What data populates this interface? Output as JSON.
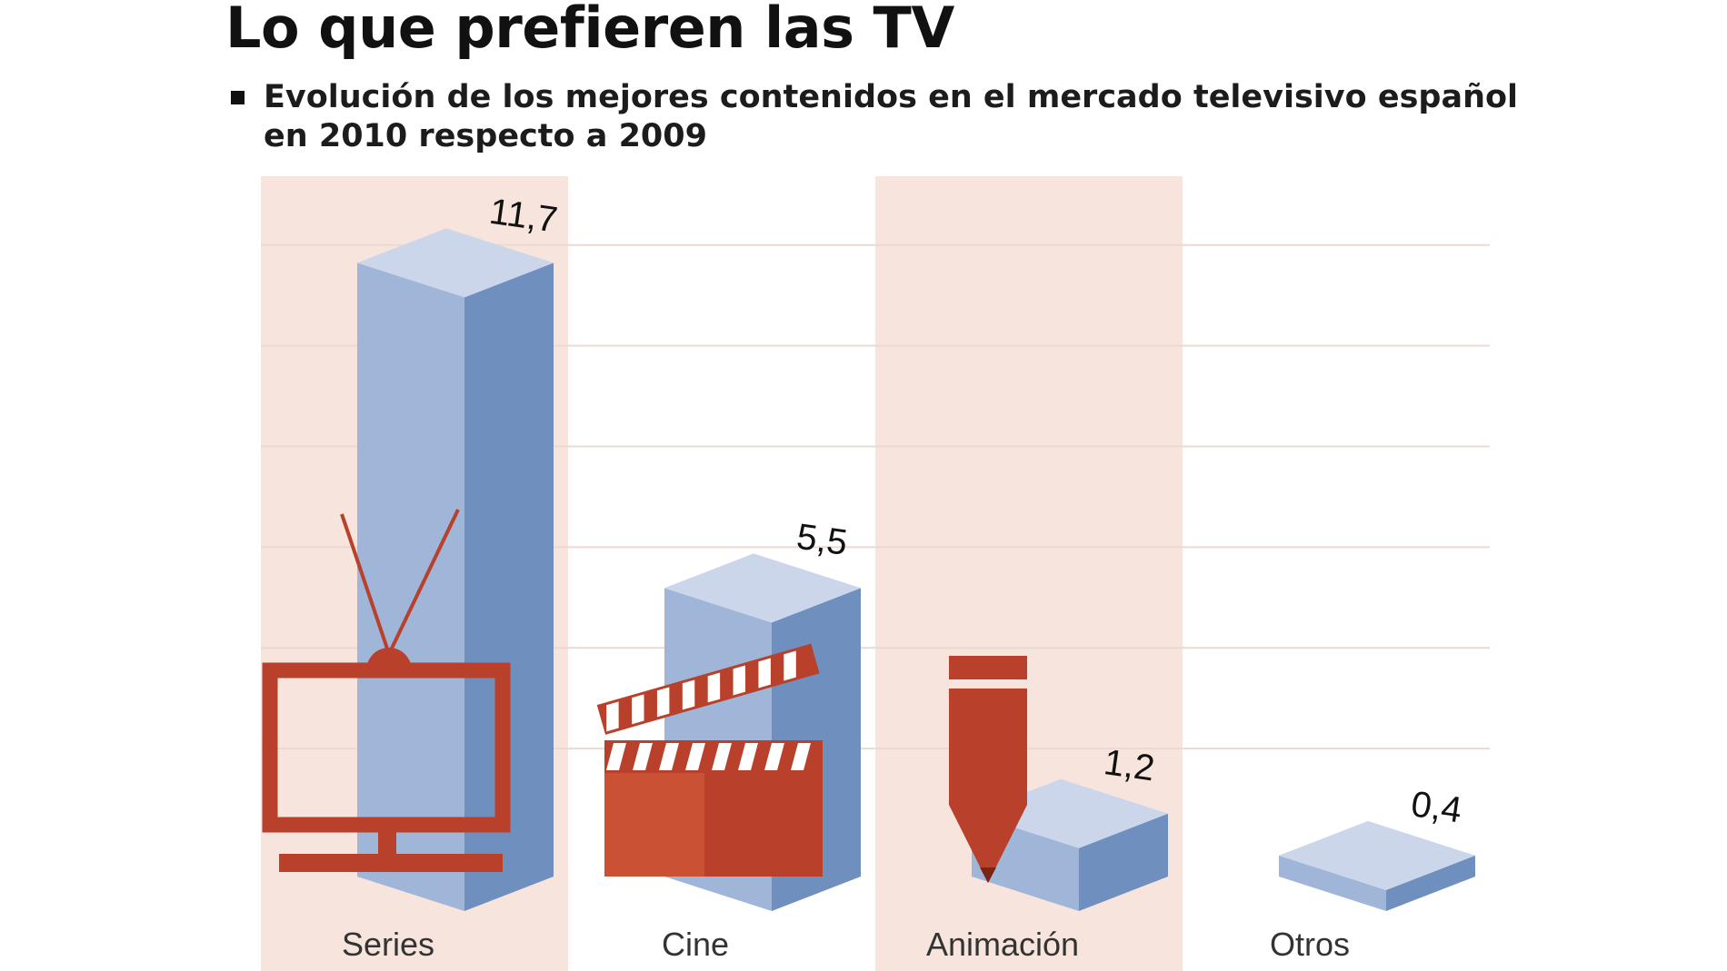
{
  "header": {
    "title": "Lo que prefieren las TV",
    "subtitle_line1": "Evolución de los mejores contenidos en el mercado televisivo español",
    "subtitle_line2": "en 2010 respecto a 2009"
  },
  "colors": {
    "band": "#f7e4dc",
    "bar_front": "#9fb6d9",
    "bar_side": "#6f8fbf",
    "bar_top": "#cbd6ea",
    "icon": "#b9402a",
    "icon_light": "#d95f3a",
    "grid": "#ecd9d2"
  },
  "icons": [
    "tv-icon",
    "clapperboard-icon",
    "pencil-icon"
  ],
  "chart_data": {
    "type": "bar",
    "style": "3d",
    "categories": [
      "Series",
      "Cine",
      "Animación",
      "Otros"
    ],
    "values": [
      11.7,
      5.5,
      1.2,
      0.4
    ],
    "value_labels": [
      "11,7",
      "5,5",
      "1,2",
      "0,4"
    ],
    "ylim": [
      0,
      12
    ],
    "grid": true,
    "legend": "none",
    "xlabel": "",
    "ylabel": ""
  }
}
